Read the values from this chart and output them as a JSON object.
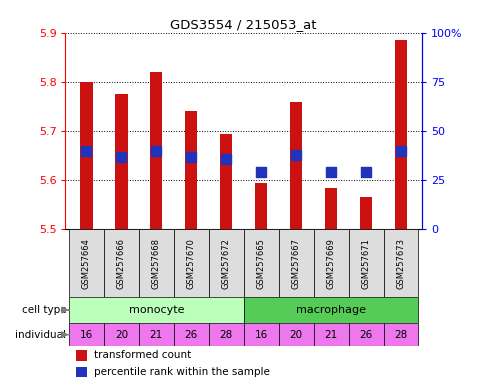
{
  "title": "GDS3554 / 215053_at",
  "samples": [
    "GSM257664",
    "GSM257666",
    "GSM257668",
    "GSM257670",
    "GSM257672",
    "GSM257665",
    "GSM257667",
    "GSM257669",
    "GSM257671",
    "GSM257673"
  ],
  "transformed_counts": [
    5.8,
    5.775,
    5.82,
    5.74,
    5.695,
    5.595,
    5.76,
    5.585,
    5.565,
    5.885
  ],
  "percentile_ranks": [
    0.4,
    0.37,
    0.4,
    0.37,
    0.36,
    0.29,
    0.38,
    0.29,
    0.29,
    0.4
  ],
  "ymin": 5.5,
  "ymax": 5.9,
  "yleft_ticks": [
    5.5,
    5.6,
    5.7,
    5.8,
    5.9
  ],
  "yright_ticks": [
    0,
    25,
    50,
    75,
    100
  ],
  "individuals": [
    "16",
    "20",
    "21",
    "26",
    "28",
    "16",
    "20",
    "21",
    "26",
    "28"
  ],
  "bar_color": "#cc1111",
  "dot_color": "#2233bb",
  "monocyte_color": "#bbffbb",
  "macrophage_color": "#55cc55",
  "individual_color": "#ee77ee",
  "sample_bg_color": "#dddddd",
  "label_red": "transformed count",
  "label_blue": "percentile rank within the sample",
  "bar_width": 0.35,
  "dot_size": 45
}
